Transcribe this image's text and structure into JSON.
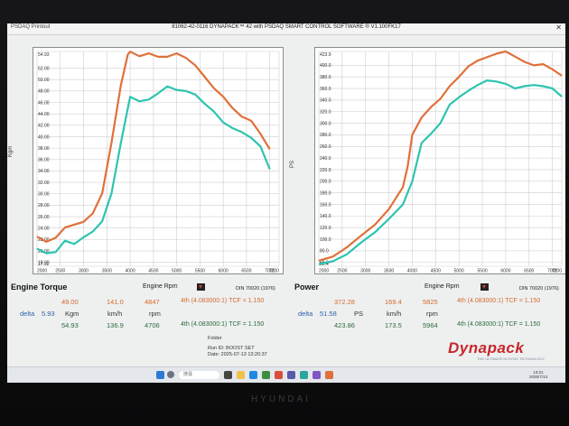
{
  "window": {
    "app_label": "PSDAQ Printout",
    "title": "81062-42-0116 DYNAPACK™ 42 with PSDAQ SMART CONTROL SOFTWARE ® V1.100FK17"
  },
  "torque_panel": {
    "title": "Engine Torque",
    "x_axis_label": "Engine Rpm",
    "standard": "DIN 70020 (1976)",
    "y_unit": "Kgm",
    "readings": {
      "row1": {
        "value": "49.00",
        "speed": "141.0",
        "rpm": "4847",
        "gear": "4th (4.083000:1) TCF = 1.150"
      },
      "row2": {
        "delta_label": "delta",
        "delta": "5.93",
        "unit": "Kgm",
        "speed_unit": "km/h",
        "rpm_unit": "rpm"
      },
      "row3": {
        "value": "54.93",
        "speed": "136.9",
        "rpm": "4706",
        "gear": "4th (4.083000:1) TCF = 1.150"
      }
    }
  },
  "power_panel": {
    "title": "Power",
    "x_axis_label": "Engine Rpm",
    "standard": "DIN 70020 (1976)",
    "y_unit": "PS",
    "readings": {
      "row1": {
        "value": "372.28",
        "speed": "169.4",
        "rpm": "5825",
        "gear": "4th (4.083000:1) TCF = 1.150"
      },
      "row2": {
        "delta_label": "delta",
        "delta": "51.58",
        "unit": "PS",
        "speed_unit": "km/h",
        "rpm_unit": "rpm"
      },
      "row3": {
        "value": "423.86",
        "speed": "173.5",
        "rpm": "5964",
        "gear": "4th (4.083000:1) TCF = 1.150"
      }
    }
  },
  "status": {
    "folder_label": "Folder",
    "run_id": "Run ID: BOOST SET",
    "date": "Date: 2025-07-13 13:20:37"
  },
  "logo": {
    "text": "Dynapack",
    "tagline": "THE ULTIMATE IN DYNO TECHNOLOGY"
  },
  "taskbar": {
    "search_placeholder": "搜尋",
    "time": "13:21",
    "date": "2025/7/13"
  },
  "monitor_brand": "HYUNDAI",
  "colors": {
    "orange": "#e0703a",
    "teal": "#2ec4b0",
    "grid": "#cfcfcf"
  },
  "chart_data": [
    {
      "type": "line",
      "title": "Engine Torque",
      "xlabel": "Engine Rpm",
      "ylabel": "Kgm",
      "xlim": [
        2000,
        7200
      ],
      "ylim": [
        17.32,
        54.93
      ],
      "x_ticks": [
        "2000",
        "2500",
        "3000",
        "3500",
        "4000",
        "4500",
        "5000",
        "5500",
        "6000",
        "6500",
        "7000",
        "7200"
      ],
      "y_ticks": [
        "17.32",
        "18.00",
        "20.00",
        "22.00",
        "24.00",
        "26.00",
        "28.00",
        "30.00",
        "32.00",
        "34.00",
        "36.00",
        "38.00",
        "40.00",
        "42.00",
        "44.00",
        "46.00",
        "48.00",
        "50.00",
        "52.00",
        "54.93"
      ],
      "grid": true,
      "series": [
        {
          "color": "#e0703a",
          "x": [
            2000,
            2200,
            2400,
            2600,
            2800,
            3000,
            3200,
            3400,
            3600,
            3800,
            3950,
            4000,
            4200,
            4400,
            4600,
            4800,
            5000,
            5200,
            5400,
            5600,
            5800,
            6000,
            6200,
            6400,
            6600,
            6800,
            7000
          ],
          "y": [
            22.5,
            21.6,
            22.3,
            24.1,
            24.6,
            25.1,
            26.6,
            30.1,
            39.0,
            49.0,
            54.4,
            54.9,
            54.1,
            54.6,
            54.0,
            54.0,
            54.6,
            53.8,
            52.5,
            50.5,
            48.5,
            47.0,
            45.0,
            43.5,
            42.8,
            40.5,
            37.8
          ]
        },
        {
          "color": "#2ec4b0",
          "x": [
            2000,
            2200,
            2400,
            2600,
            2800,
            3000,
            3200,
            3400,
            3600,
            3800,
            4000,
            4200,
            4400,
            4600,
            4800,
            5000,
            5200,
            5400,
            5600,
            5800,
            6000,
            6200,
            6400,
            6600,
            6800,
            7000
          ],
          "y": [
            20.4,
            19.6,
            19.8,
            21.8,
            21.2,
            22.4,
            23.4,
            25.2,
            30.1,
            38.9,
            47.0,
            46.2,
            46.5,
            47.6,
            48.8,
            48.2,
            48.0,
            47.4,
            45.8,
            44.4,
            42.5,
            41.5,
            40.8,
            39.8,
            38.3,
            34.3
          ]
        }
      ]
    },
    {
      "type": "line",
      "title": "Power",
      "xlabel": "Engine Rpm",
      "ylabel": "PS",
      "xlim": [
        2000,
        7200
      ],
      "ylim": [
        53.4,
        423.9
      ],
      "x_ticks": [
        "2000",
        "2500",
        "3000",
        "3500",
        "4000",
        "4500",
        "5000",
        "5500",
        "6000",
        "6500",
        "7000",
        "7200"
      ],
      "y_ticks": [
        "53.4",
        "60.0",
        "80.0",
        "100.0",
        "120.0",
        "140.0",
        "160.0",
        "180.0",
        "200.0",
        "220.0",
        "240.0",
        "260.0",
        "280.0",
        "300.0",
        "320.0",
        "340.0",
        "360.0",
        "380.0",
        "400.0",
        "423.9"
      ],
      "grid": true,
      "series": [
        {
          "color": "#e0703a",
          "x": [
            2000,
            2300,
            2600,
            2900,
            3200,
            3500,
            3800,
            3900,
            4000,
            4200,
            4400,
            4600,
            4800,
            5000,
            5200,
            5400,
            5600,
            5800,
            6000,
            6200,
            6400,
            6600,
            6800,
            7000,
            7200
          ],
          "y": [
            63,
            70,
            86,
            106,
            125,
            152,
            190,
            225,
            280,
            310,
            328,
            342,
            364,
            380,
            398,
            408,
            414,
            420,
            423.9,
            415,
            406,
            400,
            402,
            393,
            382
          ]
        },
        {
          "color": "#2ec4b0",
          "x": [
            2000,
            2300,
            2600,
            2900,
            3200,
            3500,
            3800,
            4000,
            4200,
            4400,
            4600,
            4800,
            5000,
            5200,
            5400,
            5600,
            5800,
            6000,
            6200,
            6400,
            6600,
            6800,
            7000,
            7200
          ],
          "y": [
            57,
            62,
            74,
            94,
            112,
            135,
            160,
            200,
            266,
            282,
            300,
            332,
            345,
            356,
            366,
            374,
            372,
            368,
            360,
            364,
            366,
            364,
            360,
            346
          ]
        }
      ]
    }
  ]
}
